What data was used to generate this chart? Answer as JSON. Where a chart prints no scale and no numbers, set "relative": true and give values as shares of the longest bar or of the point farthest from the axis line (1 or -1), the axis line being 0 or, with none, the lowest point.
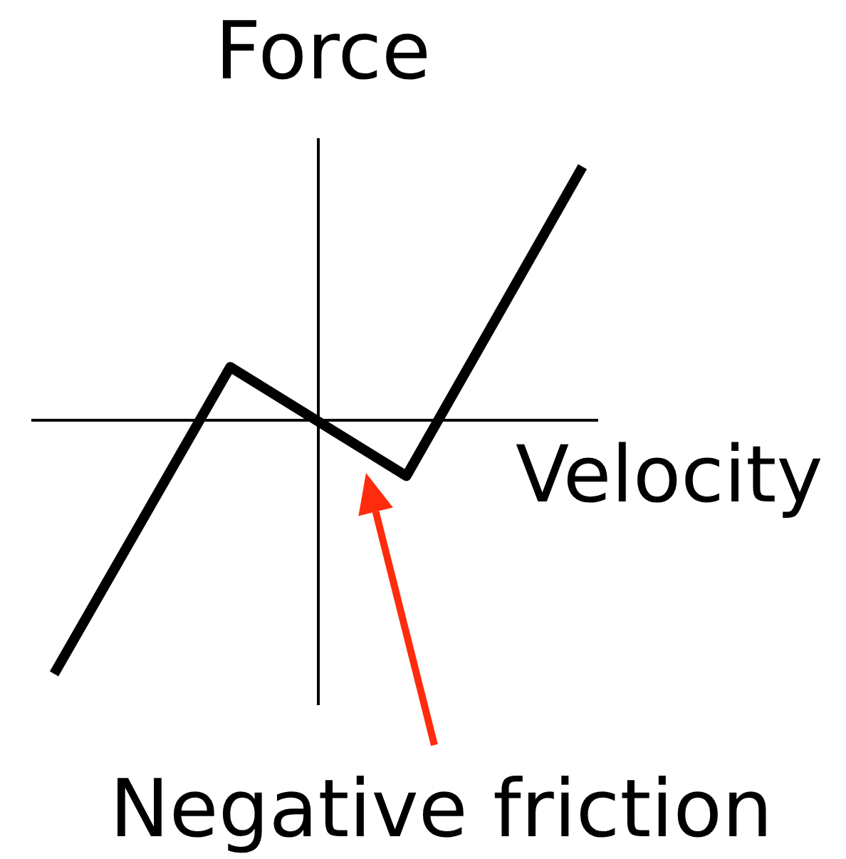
{
  "chart_data": {
    "type": "line",
    "xlabel": "Velocity",
    "ylabel": "Force",
    "annotations": [
      "Negative friction"
    ],
    "categories": [
      null,
      null,
      null,
      null
    ],
    "series": [
      {
        "color": "#000000",
        "values": [
          -1,
          0.21,
          -0.22,
          1
        ]
      }
    ],
    "relative": true,
    "marker": "none"
  }
}
